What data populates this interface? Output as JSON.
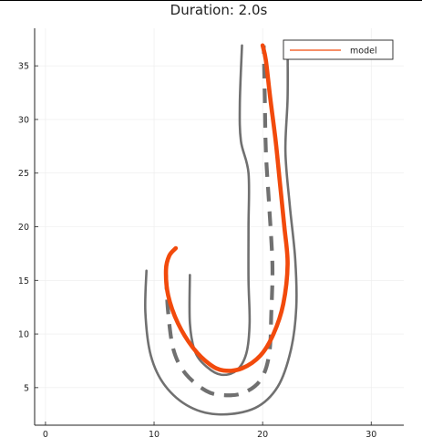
{
  "chart_data": {
    "type": "line",
    "title": "Duration: 2.0s",
    "xlabel": "",
    "ylabel": "",
    "xlim": [
      -1,
      33
    ],
    "ylim": [
      1.5,
      38.5
    ],
    "xticks": [
      0,
      10,
      20,
      30
    ],
    "yticks": [
      5,
      10,
      15,
      20,
      25,
      30,
      35
    ],
    "grid": true,
    "legend": {
      "placement": "top-right",
      "entries": [
        "model"
      ]
    },
    "track": {
      "color": "#707070",
      "outer_boundary": [
        [
          9.3,
          15.9
        ],
        [
          9.2,
          12
        ],
        [
          9.7,
          8
        ],
        [
          11,
          5.2
        ],
        [
          13.3,
          3.2
        ],
        [
          16.1,
          2.5
        ],
        [
          19.3,
          3.1
        ],
        [
          21.4,
          5.1
        ],
        [
          22.6,
          8.5
        ],
        [
          23.1,
          12.5
        ],
        [
          23,
          17
        ],
        [
          22.5,
          22
        ],
        [
          22.1,
          27
        ],
        [
          22.3,
          32
        ],
        [
          22.3,
          36.9
        ]
      ],
      "inner_boundary": [
        [
          13.3,
          15.5
        ],
        [
          13.3,
          11
        ],
        [
          13.8,
          8.3
        ],
        [
          14.9,
          6.9
        ],
        [
          16.2,
          6.2
        ],
        [
          17.6,
          6.6
        ],
        [
          18.5,
          8.2
        ],
        [
          18.8,
          11
        ],
        [
          18.7,
          15
        ],
        [
          18.7,
          20
        ],
        [
          18.7,
          25
        ],
        [
          18,
          28
        ],
        [
          17.9,
          31.5
        ],
        [
          18.1,
          36.9
        ]
      ],
      "center_line": [
        [
          11.1,
          15.5
        ],
        [
          11.3,
          12
        ],
        [
          11.8,
          8.5
        ],
        [
          12.9,
          6.3
        ],
        [
          14.8,
          4.7
        ],
        [
          16.4,
          4.3
        ],
        [
          18.2,
          4.5
        ],
        [
          19.8,
          5.7
        ],
        [
          20.6,
          8.1
        ],
        [
          20.8,
          12
        ],
        [
          20.9,
          16.5
        ],
        [
          20.6,
          22
        ],
        [
          20.3,
          27
        ],
        [
          20.2,
          32
        ],
        [
          20.1,
          36.9
        ]
      ]
    },
    "series": [
      {
        "name": "model",
        "color": "#f24a0c",
        "points": [
          [
            12.0,
            18.0
          ],
          [
            11.4,
            17.3
          ],
          [
            11.1,
            16.0
          ],
          [
            11.3,
            13.6
          ],
          [
            12.2,
            11.0
          ],
          [
            13.6,
            8.7
          ],
          [
            15.1,
            7.2
          ],
          [
            16.4,
            6.6
          ],
          [
            18.1,
            6.8
          ],
          [
            19.8,
            8.0
          ],
          [
            21.0,
            10.0
          ],
          [
            21.9,
            12.8
          ],
          [
            22.3,
            16.5
          ],
          [
            22.0,
            20.0
          ],
          [
            21.6,
            24.0
          ],
          [
            21.2,
            28.0
          ],
          [
            20.7,
            32.0
          ],
          [
            20.3,
            35.5
          ],
          [
            20.0,
            36.9
          ]
        ]
      }
    ]
  }
}
